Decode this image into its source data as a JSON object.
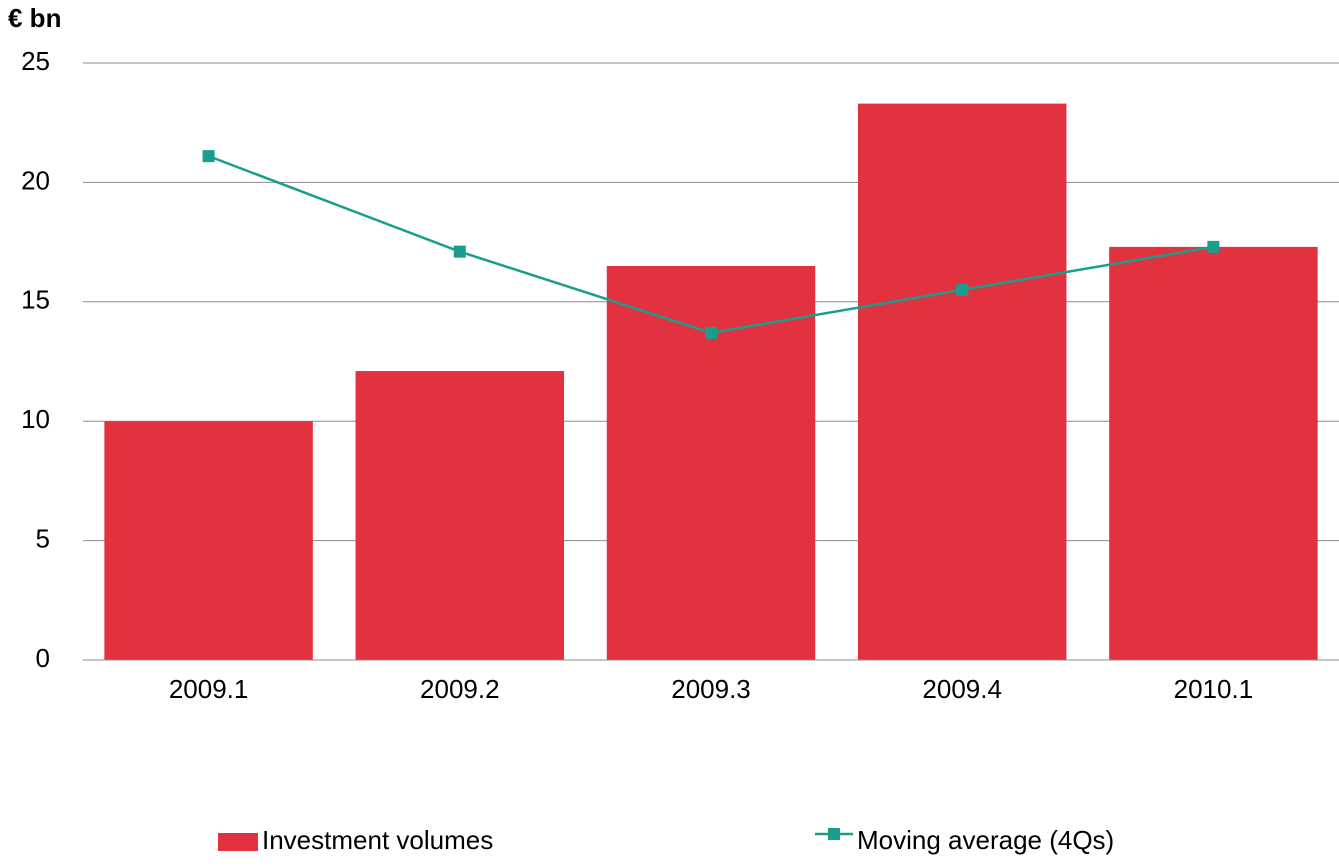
{
  "chart_data": {
    "type": "bar",
    "y_label": "€ bn",
    "categories": [
      "2009.1",
      "2009.2",
      "2009.3",
      "2009.4",
      "2010.1"
    ],
    "series": [
      {
        "name": "Investment volumes",
        "type": "bar",
        "color": "#e3323f",
        "values": [
          10,
          12.1,
          16.5,
          23.3,
          17.3
        ]
      },
      {
        "name": "Moving average (4Qs)",
        "type": "line",
        "color": "#1a9e8c",
        "values": [
          21.1,
          17.1,
          13.7,
          15.5,
          17.3
        ]
      }
    ],
    "ylim": [
      0,
      25
    ],
    "yticks": [
      0,
      5,
      10,
      15,
      20,
      25
    ],
    "grid": true,
    "legend": "bottom"
  }
}
